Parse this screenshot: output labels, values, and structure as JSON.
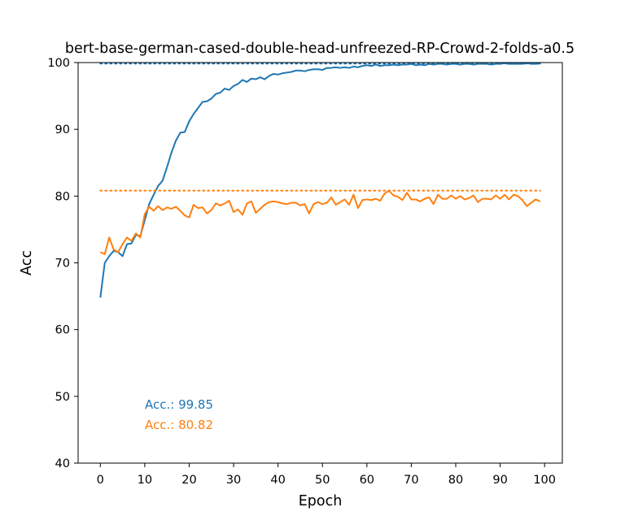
{
  "chart_data": {
    "type": "line",
    "title": "bert-base-german-cased-double-head-unfreezed-RP-Crowd-2-folds-a0.5",
    "xlabel": "Epoch",
    "ylabel": "Acc",
    "xlim": [
      -5,
      104
    ],
    "ylim": [
      40,
      100
    ],
    "xticks": [
      0,
      10,
      20,
      30,
      40,
      50,
      60,
      70,
      80,
      90,
      100
    ],
    "yticks": [
      40,
      50,
      60,
      70,
      80,
      90,
      100
    ],
    "x": [
      0,
      1,
      2,
      3,
      4,
      5,
      6,
      7,
      8,
      9,
      10,
      11,
      12,
      13,
      14,
      15,
      16,
      17,
      18,
      19,
      20,
      21,
      22,
      23,
      24,
      25,
      26,
      27,
      28,
      29,
      30,
      31,
      32,
      33,
      34,
      35,
      36,
      37,
      38,
      39,
      40,
      41,
      42,
      43,
      44,
      45,
      46,
      47,
      48,
      49,
      50,
      51,
      52,
      53,
      54,
      55,
      56,
      57,
      58,
      59,
      60,
      61,
      62,
      63,
      64,
      65,
      66,
      67,
      68,
      69,
      70,
      71,
      72,
      73,
      74,
      75,
      76,
      77,
      78,
      79,
      80,
      81,
      82,
      83,
      84,
      85,
      86,
      87,
      88,
      89,
      90,
      91,
      92,
      93,
      94,
      95,
      96,
      97,
      98,
      99
    ],
    "series": [
      {
        "color": "#1f77b4",
        "max_line": 99.85,
        "annotation": "Acc.: 99.85",
        "values": [
          64.8,
          70.0,
          71.0,
          71.8,
          71.6,
          71.0,
          72.8,
          72.9,
          74.2,
          74.0,
          76.4,
          78.8,
          80.2,
          81.5,
          82.3,
          84.3,
          86.5,
          88.3,
          89.5,
          89.6,
          91.2,
          92.3,
          93.2,
          94.1,
          94.2,
          94.6,
          95.3,
          95.5,
          96.1,
          95.9,
          96.5,
          96.8,
          97.4,
          97.1,
          97.6,
          97.5,
          97.8,
          97.5,
          98.0,
          98.3,
          98.2,
          98.4,
          98.5,
          98.6,
          98.8,
          98.8,
          98.7,
          98.9,
          99.0,
          99.0,
          98.9,
          99.2,
          99.2,
          99.3,
          99.2,
          99.3,
          99.2,
          99.4,
          99.3,
          99.5,
          99.6,
          99.5,
          99.7,
          99.5,
          99.6,
          99.6,
          99.7,
          99.6,
          99.7,
          99.7,
          99.8,
          99.6,
          99.7,
          99.6,
          99.8,
          99.7,
          99.8,
          99.8,
          99.7,
          99.8,
          99.8,
          99.7,
          99.8,
          99.8,
          99.7,
          99.8,
          99.8,
          99.8,
          99.7,
          99.8,
          99.8,
          99.9,
          99.8,
          99.8,
          99.8,
          99.8,
          99.9,
          99.8,
          99.8,
          99.85
        ]
      },
      {
        "color": "#ff7f0e",
        "max_line": 80.82,
        "annotation": "Acc.: 80.82",
        "values": [
          71.6,
          71.3,
          73.8,
          72.0,
          71.6,
          72.8,
          73.8,
          73.3,
          74.4,
          73.8,
          77.3,
          78.4,
          77.8,
          78.5,
          77.9,
          78.3,
          78.1,
          78.4,
          77.8,
          77.1,
          76.8,
          78.7,
          78.2,
          78.3,
          77.4,
          77.9,
          78.9,
          78.6,
          78.9,
          79.3,
          77.6,
          78.0,
          77.2,
          78.9,
          79.2,
          77.5,
          78.1,
          78.7,
          79.1,
          79.2,
          79.1,
          78.9,
          78.8,
          79.0,
          79.0,
          78.6,
          78.8,
          77.4,
          78.8,
          79.1,
          78.8,
          79.0,
          79.8,
          78.7,
          79.1,
          79.5,
          78.7,
          80.2,
          78.2,
          79.4,
          79.5,
          79.4,
          79.6,
          79.3,
          80.4,
          80.8,
          80.1,
          79.9,
          79.4,
          80.5,
          79.5,
          79.5,
          79.2,
          79.6,
          79.8,
          78.8,
          80.2,
          79.6,
          79.6,
          80.1,
          79.6,
          80.0,
          79.5,
          79.7,
          80.1,
          79.1,
          79.6,
          79.6,
          79.5,
          80.1,
          79.6,
          80.2,
          79.5,
          80.2,
          80.0,
          79.4,
          78.5,
          79.0,
          79.5,
          79.2
        ]
      }
    ]
  }
}
